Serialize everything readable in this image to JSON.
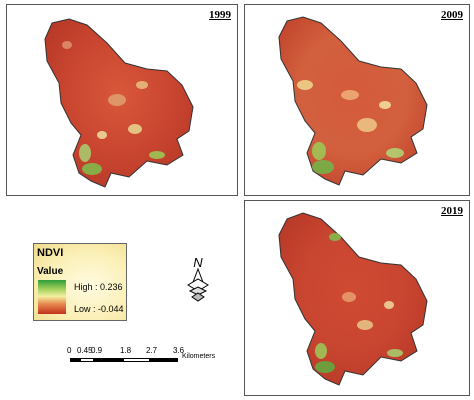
{
  "maps": [
    {
      "year": "1999"
    },
    {
      "year": "2009"
    },
    {
      "year": "2019"
    }
  ],
  "legend": {
    "title": "NDVI",
    "value_label": "Value",
    "high_label": "High : 0.236",
    "low_label": "Low : -0.044",
    "high_color": "#2e9e3a",
    "low_color": "#c0321e"
  },
  "north_arrow": {
    "label": "N"
  },
  "scale_bar": {
    "ticks": [
      "0",
      "0.45",
      "0.9",
      "1.8",
      "2.7",
      "3.6"
    ],
    "unit": "Kilometers"
  }
}
